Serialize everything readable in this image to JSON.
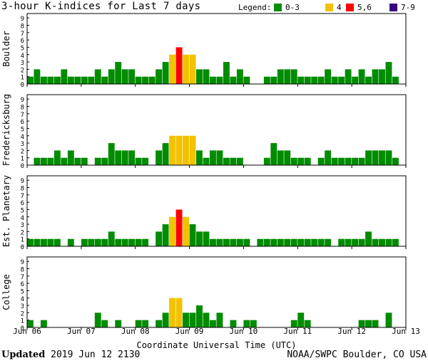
{
  "header": {
    "title": "3-hour K-indices for Last 7 days",
    "legend_label": "Legend:"
  },
  "legend": [
    {
      "label": "0-3",
      "color": "#008c00"
    },
    {
      "label": "4",
      "color": "#f2c200"
    },
    {
      "label": "5,6",
      "color": "#ff0000"
    },
    {
      "label": "7-9",
      "color": "#3c007f"
    }
  ],
  "footer": {
    "updated_label": "Updated",
    "updated_value": "2019 Jun 12 2130",
    "source": "NOAA/SWPC Boulder, CO USA"
  },
  "chart_data": {
    "type": "bar",
    "xlabel": "Coordinate Universal Time (UTC)",
    "x_ticks": [
      "Jun 06",
      "Jun 07",
      "Jun 08",
      "Jun 09",
      "Jun 10",
      "Jun 11",
      "Jun 12",
      "Jun 13"
    ],
    "ylim": [
      0,
      9
    ],
    "y_ticks": [
      0,
      1,
      2,
      3,
      4,
      5,
      6,
      7,
      8,
      9
    ],
    "bins_per_day": 8,
    "grid": false,
    "color_scale": {
      "0-3": "#008c00",
      "4": "#f2c200",
      "5,6": "#ff0000",
      "7-9": "#3c007f"
    },
    "panels": [
      {
        "name": "Boulder",
        "values": [
          1,
          2,
          1,
          1,
          1,
          2,
          1,
          1,
          1,
          1,
          2,
          1,
          2,
          3,
          2,
          2,
          1,
          1,
          1,
          2,
          3,
          4,
          5,
          4,
          4,
          2,
          2,
          1,
          1,
          3,
          1,
          2,
          1,
          0,
          0,
          1,
          1,
          2,
          2,
          2,
          1,
          1,
          1,
          1,
          2,
          1,
          1,
          2,
          1,
          2,
          1,
          2,
          2,
          3,
          1,
          0
        ]
      },
      {
        "name": "Fredericksburg",
        "values": [
          0,
          1,
          1,
          1,
          2,
          1,
          2,
          1,
          1,
          0,
          1,
          1,
          3,
          2,
          2,
          2,
          1,
          1,
          0,
          2,
          3,
          4,
          4,
          4,
          4,
          2,
          1,
          2,
          2,
          1,
          1,
          1,
          0,
          0,
          0,
          1,
          3,
          2,
          2,
          1,
          1,
          1,
          0,
          1,
          2,
          1,
          1,
          1,
          1,
          1,
          2,
          2,
          2,
          2,
          1,
          0
        ]
      },
      {
        "name": "Est. Planetary",
        "values": [
          1,
          1,
          1,
          1,
          1,
          0,
          1,
          0,
          1,
          1,
          1,
          1,
          2,
          1,
          1,
          1,
          1,
          1,
          0,
          2,
          3,
          4,
          5,
          4,
          3,
          2,
          2,
          1,
          1,
          1,
          1,
          1,
          1,
          0,
          1,
          1,
          1,
          1,
          1,
          1,
          1,
          1,
          1,
          1,
          1,
          0,
          1,
          1,
          1,
          1,
          2,
          1,
          1,
          1,
          1,
          0
        ]
      },
      {
        "name": "College",
        "values": [
          1,
          0,
          1,
          0,
          0,
          0,
          0,
          0,
          0,
          0,
          2,
          1,
          0,
          1,
          0,
          0,
          1,
          1,
          0,
          1,
          2,
          4,
          4,
          2,
          2,
          3,
          2,
          1,
          2,
          0,
          1,
          0,
          1,
          1,
          0,
          0,
          0,
          0,
          0,
          1,
          2,
          1,
          0,
          0,
          0,
          0,
          0,
          0,
          0,
          1,
          1,
          1,
          0,
          2,
          0,
          0
        ]
      }
    ]
  }
}
